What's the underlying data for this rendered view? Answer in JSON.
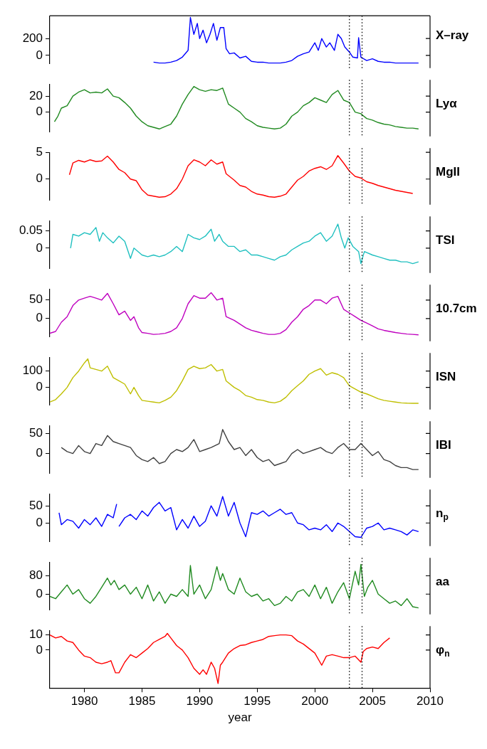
{
  "chart_data": [
    {
      "type": "line",
      "x": [
        1986,
        1986.5,
        1987,
        1987.5,
        1988,
        1988.5,
        1989,
        1989.2,
        1989.5,
        1989.8,
        1990,
        1990.3,
        1990.6,
        1990.9,
        1991.2,
        1991.5,
        1991.8,
        1992.1,
        1992.3,
        1992.6,
        1993,
        1993.5,
        1994,
        1994.5,
        1995,
        1995.5,
        1996,
        1996.5,
        1997,
        1997.5,
        1998,
        1998.5,
        1999,
        1999.5,
        2000,
        2000.3,
        2000.6,
        2001,
        2001.3,
        2001.7,
        2002,
        2002.3,
        2002.6,
        2003,
        2003.3,
        2003.7,
        2003.8,
        2004,
        2004.5,
        2005,
        2005.5,
        2006,
        2006.5,
        2007,
        2007.5,
        2008,
        2008.5,
        2009
      ],
      "series": [
        {
          "name": "X–ray",
          "color": "#0000ff",
          "values": [
            -80,
            -90,
            -90,
            -80,
            -60,
            -20,
            60,
            450,
            250,
            380,
            200,
            300,
            150,
            250,
            380,
            180,
            330,
            330,
            80,
            20,
            30,
            -30,
            -10,
            -70,
            -80,
            -80,
            -90,
            -90,
            -90,
            -80,
            -60,
            -10,
            20,
            40,
            150,
            60,
            200,
            100,
            150,
            60,
            250,
            200,
            100,
            40,
            -20,
            -30,
            210,
            -20,
            -60,
            -40,
            -70,
            -80,
            -80,
            -90,
            -90,
            -90,
            -90,
            -90
          ]
        }
      ],
      "xlim": [
        1977,
        2010
      ],
      "ylim": [
        -100,
        470
      ],
      "yticks": [
        0,
        200
      ],
      "tick_labels": "y",
      "ref_lines": [
        {
          "axis": "x",
          "value": 2003,
          "color": "#000000",
          "line_style": "dotted"
        },
        {
          "axis": "x",
          "value": 2004.1,
          "color": "#000000",
          "line_style": "dotted"
        }
      ]
    },
    {
      "type": "line",
      "x": [
        1977.4,
        1977.7,
        1978,
        1978.5,
        1979,
        1979.5,
        1980,
        1980.5,
        1981,
        1981.5,
        1982,
        1982.5,
        1983,
        1983.5,
        1984,
        1984.5,
        1985,
        1985.5,
        1986,
        1986.5,
        1987,
        1987.5,
        1988,
        1988.5,
        1989,
        1989.5,
        1990,
        1990.5,
        1991,
        1991.5,
        1992,
        1992.5,
        1993,
        1993.5,
        1994,
        1994.5,
        1995,
        1995.5,
        1996,
        1996.5,
        1997,
        1997.5,
        1998,
        1998.5,
        1999,
        1999.5,
        2000,
        2000.5,
        2001,
        2001.5,
        2002,
        2002.5,
        2003,
        2003.5,
        2004,
        2004.5,
        2005,
        2005.5,
        2006,
        2006.5,
        2007,
        2007.5,
        2008,
        2008.5,
        2009
      ],
      "series": [
        {
          "name": "Lyα",
          "color": "#208a20",
          "values": [
            -12,
            -5,
            5,
            8,
            20,
            25,
            28,
            24,
            25,
            24,
            29,
            20,
            18,
            12,
            5,
            -5,
            -12,
            -17,
            -19,
            -21,
            -18,
            -15,
            -5,
            10,
            22,
            32,
            28,
            26,
            28,
            27,
            30,
            10,
            5,
            0,
            -8,
            -12,
            -17,
            -19,
            -20,
            -21,
            -20,
            -15,
            -5,
            0,
            8,
            12,
            18,
            15,
            12,
            22,
            27,
            15,
            12,
            0,
            -2,
            -8,
            -10,
            -13,
            -15,
            -16,
            -18,
            -19,
            -20,
            -20,
            -21
          ]
        }
      ],
      "xlim": [
        1977,
        2010
      ],
      "ylim": [
        -25,
        35
      ],
      "yticks": [
        0,
        20
      ],
      "tick_labels": "y",
      "ref_lines": [
        {
          "axis": "x",
          "value": 2003,
          "color": "#000000",
          "line_style": "dotted"
        },
        {
          "axis": "x",
          "value": 2004.1,
          "color": "#000000",
          "line_style": "dotted"
        }
      ]
    },
    {
      "type": "line",
      "x": [
        1978.7,
        1979,
        1979.5,
        1980,
        1980.5,
        1981,
        1981.5,
        1982,
        1982.5,
        1983,
        1983.5,
        1984,
        1984.5,
        1985,
        1985.5,
        1986,
        1986.5,
        1987,
        1987.5,
        1988,
        1988.5,
        1989,
        1989.5,
        1990,
        1990.5,
        1991,
        1991.5,
        1992,
        1992.3,
        1993,
        1993.5,
        1994,
        1994.5,
        1995,
        1995.5,
        1996,
        1996.5,
        1997,
        1997.5,
        1998,
        1998.5,
        1999,
        1999.5,
        2000,
        2000.5,
        2001,
        2001.5,
        2002,
        2002.5,
        2003,
        2003.5,
        2004,
        2004.5,
        2005,
        2005.5,
        2006,
        2006.5,
        2007,
        2007.5,
        2008,
        2008.5
      ],
      "series": [
        {
          "name": "MgII",
          "color": "#ff0000",
          "values": [
            0.8,
            3,
            3.5,
            3.2,
            3.6,
            3.3,
            3.4,
            4.3,
            3.2,
            1.8,
            1.2,
            0,
            -0.3,
            -2,
            -3,
            -3.2,
            -3.4,
            -3.3,
            -2.8,
            -1.8,
            0,
            2.5,
            3.6,
            3.2,
            2.5,
            3.6,
            2.8,
            3.2,
            1,
            -0.2,
            -1.2,
            -1.5,
            -2.3,
            -2.8,
            -3,
            -3.3,
            -3.4,
            -3.2,
            -2.8,
            -1.5,
            -0.2,
            0.5,
            1.5,
            2,
            2.3,
            1.8,
            2.5,
            4.4,
            3,
            1.5,
            0.5,
            0.2,
            -0.5,
            -0.8,
            -1.2,
            -1.5,
            -1.8,
            -2.1,
            -2.3,
            -2.5,
            -2.7
          ]
        }
      ],
      "xlim": [
        1977,
        2010
      ],
      "ylim": [
        -4,
        5
      ],
      "yticks": [
        0,
        5
      ],
      "tick_labels": "y",
      "ref_lines": [
        {
          "axis": "x",
          "value": 2003,
          "color": "#000000",
          "line_style": "dotted"
        },
        {
          "axis": "x",
          "value": 2004.1,
          "color": "#000000",
          "line_style": "dotted"
        }
      ]
    },
    {
      "type": "line",
      "x": [
        1978.8,
        1979,
        1979.5,
        1980,
        1980.5,
        1981,
        1981.3,
        1981.6,
        1982,
        1982.5,
        1983,
        1983.5,
        1984,
        1984.3,
        1985,
        1985.5,
        1986,
        1986.5,
        1987,
        1987.5,
        1988,
        1988.5,
        1989,
        1989.5,
        1990,
        1990.5,
        1991,
        1991.3,
        1991.7,
        1992,
        1992.5,
        1993,
        1993.5,
        1994,
        1994.5,
        1995,
        1995.5,
        1996,
        1996.5,
        1997,
        1997.5,
        1998,
        1998.5,
        1999,
        1999.5,
        2000,
        2000.5,
        2001,
        2001.5,
        2002,
        2002.3,
        2002.6,
        2002.9,
        2003.3,
        2003.8,
        2004,
        2004.3,
        2005,
        2005.5,
        2006,
        2006.5,
        2007,
        2007.5,
        2008,
        2008.5,
        2009
      ],
      "series": [
        {
          "name": "TSI",
          "color": "#20c0c0",
          "values": [
            0,
            0.04,
            0.035,
            0.045,
            0.04,
            0.06,
            0.02,
            0.045,
            0.03,
            0.015,
            0.035,
            0.02,
            -0.03,
            0,
            -0.02,
            -0.025,
            -0.02,
            -0.025,
            -0.02,
            -0.01,
            0.005,
            -0.01,
            0.04,
            0.03,
            0.025,
            0.035,
            0.055,
            0.02,
            0.04,
            0.02,
            0.005,
            0.005,
            -0.01,
            -0.005,
            -0.02,
            -0.02,
            -0.025,
            -0.03,
            -0.035,
            -0.025,
            -0.02,
            -0.005,
            0.005,
            0.015,
            0.02,
            0.035,
            0.045,
            0.02,
            0.035,
            0.07,
            0.03,
            0,
            0.03,
            0.005,
            -0.01,
            -0.045,
            -0.01,
            -0.02,
            -0.025,
            -0.03,
            -0.035,
            -0.035,
            -0.04,
            -0.04,
            -0.045,
            -0.04
          ]
        }
      ],
      "xlim": [
        1977,
        2010
      ],
      "ylim": [
        -0.06,
        0.08
      ],
      "yticks": [
        0,
        0.05
      ],
      "tick_labels": "y",
      "ref_lines": [
        {
          "axis": "x",
          "value": 2003,
          "color": "#000000",
          "line_style": "dotted"
        },
        {
          "axis": "x",
          "value": 2004.1,
          "color": "#000000",
          "line_style": "dotted"
        }
      ]
    },
    {
      "type": "line",
      "x": [
        1977,
        1977.5,
        1978,
        1978.5,
        1979,
        1979.5,
        1980,
        1980.5,
        1981,
        1981.5,
        1982,
        1982.5,
        1983,
        1983.5,
        1984,
        1984.3,
        1984.7,
        1985,
        1985.5,
        1986,
        1986.5,
        1987,
        1987.5,
        1988,
        1988.5,
        1989,
        1989.5,
        1990,
        1990.5,
        1991,
        1991.5,
        1992,
        1992.3,
        1993,
        1993.5,
        1994,
        1994.5,
        1995,
        1995.5,
        1996,
        1996.5,
        1997,
        1997.5,
        1998,
        1998.5,
        1999,
        1999.5,
        2000,
        2000.5,
        2001,
        2001.5,
        2002,
        2002.5,
        2003,
        2003.5,
        2004,
        2004.5,
        2005,
        2005.5,
        2006,
        2006.5,
        2007,
        2007.5,
        2008,
        2008.5,
        2009
      ],
      "series": [
        {
          "name": "10.7cm",
          "color": "#bf00bf",
          "values": [
            -40,
            -35,
            -10,
            5,
            35,
            50,
            55,
            60,
            55,
            50,
            68,
            40,
            10,
            20,
            -5,
            5,
            -25,
            -38,
            -40,
            -43,
            -42,
            -40,
            -35,
            -25,
            0,
            40,
            62,
            55,
            55,
            70,
            50,
            55,
            5,
            -5,
            -15,
            -25,
            -32,
            -36,
            -40,
            -43,
            -43,
            -40,
            -30,
            -10,
            5,
            25,
            35,
            50,
            50,
            40,
            55,
            60,
            25,
            15,
            5,
            -5,
            -12,
            -20,
            -28,
            -32,
            -35,
            -38,
            -40,
            -42,
            -43,
            -44
          ]
        }
      ],
      "xlim": [
        1977,
        2010
      ],
      "ylim": [
        -50,
        80
      ],
      "yticks": [
        0,
        50
      ],
      "tick_labels": "y",
      "ref_lines": [
        {
          "axis": "x",
          "value": 2003,
          "color": "#000000",
          "line_style": "dotted"
        },
        {
          "axis": "x",
          "value": 2004.1,
          "color": "#000000",
          "line_style": "dotted"
        }
      ]
    },
    {
      "type": "line",
      "x": [
        1977,
        1977.5,
        1978,
        1978.5,
        1979,
        1979.5,
        1980,
        1980.3,
        1980.5,
        1981,
        1981.5,
        1982,
        1982.5,
        1983,
        1983.5,
        1984,
        1984.3,
        1984.7,
        1985,
        1985.5,
        1986,
        1986.5,
        1987,
        1987.5,
        1988,
        1988.5,
        1989,
        1989.5,
        1990,
        1990.5,
        1991,
        1991.5,
        1992,
        1992.3,
        1993,
        1993.5,
        1994,
        1994.5,
        1995,
        1995.5,
        1996,
        1996.5,
        1997,
        1997.5,
        1998,
        1998.5,
        1999,
        1999.5,
        2000,
        2000.5,
        2001,
        2001.5,
        2002,
        2002.5,
        2003,
        2003.5,
        2004,
        2004.5,
        2005,
        2005.5,
        2006,
        2006.5,
        2007,
        2007.5,
        2008,
        2008.5,
        2009
      ],
      "series": [
        {
          "name": "ISN",
          "color": "#bfbf00",
          "values": [
            -90,
            -75,
            -40,
            0,
            60,
            100,
            150,
            175,
            120,
            110,
            100,
            130,
            60,
            40,
            20,
            -40,
            0,
            -50,
            -80,
            -85,
            -90,
            -95,
            -80,
            -60,
            -20,
            40,
            110,
            130,
            115,
            120,
            140,
            100,
            110,
            40,
            0,
            -20,
            -50,
            -60,
            -75,
            -80,
            -90,
            -95,
            -85,
            -60,
            -20,
            10,
            40,
            80,
            100,
            115,
            75,
            90,
            80,
            60,
            10,
            -10,
            -30,
            -40,
            -55,
            -70,
            -80,
            -85,
            -90,
            -95,
            -97,
            -98,
            -98
          ]
        }
      ],
      "xlim": [
        1977,
        2010
      ],
      "ylim": [
        -110,
        185
      ],
      "yticks": [
        0,
        100
      ],
      "tick_labels": "y",
      "ref_lines": [
        {
          "axis": "x",
          "value": 2003,
          "color": "#000000",
          "line_style": "dotted"
        },
        {
          "axis": "x",
          "value": 2004.1,
          "color": "#000000",
          "line_style": "dotted"
        }
      ]
    },
    {
      "type": "line",
      "x": [
        1978,
        1978.5,
        1979,
        1979.5,
        1980,
        1980.5,
        1981,
        1981.5,
        1982,
        1982.5,
        1983,
        1983.5,
        1984,
        1984.5,
        1985,
        1985.5,
        1986,
        1986.5,
        1987,
        1987.5,
        1988,
        1988.5,
        1989,
        1989.5,
        1990,
        1990.5,
        1991,
        1991.7,
        1992,
        1992.5,
        1993,
        1993.5,
        1994,
        1994.5,
        1995,
        1995.5,
        1996,
        1996.5,
        1997,
        1997.5,
        1998,
        1998.5,
        1999,
        1999.5,
        2000,
        2000.5,
        2001,
        2001.5,
        2002,
        2002.5,
        2003,
        2003.5,
        2004,
        2004.5,
        2005,
        2005.5,
        2006,
        2006.5,
        2007,
        2007.5,
        2008,
        2008.5,
        2009
      ],
      "series": [
        {
          "name": "IBI",
          "color": "#404040",
          "values": [
            15,
            5,
            0,
            20,
            5,
            0,
            25,
            20,
            45,
            30,
            25,
            20,
            15,
            -5,
            -15,
            -20,
            -10,
            -25,
            -20,
            0,
            10,
            5,
            15,
            35,
            5,
            10,
            15,
            25,
            60,
            30,
            10,
            15,
            -5,
            10,
            -10,
            -20,
            -15,
            -30,
            -25,
            -20,
            0,
            10,
            0,
            5,
            10,
            15,
            5,
            0,
            15,
            25,
            10,
            10,
            25,
            10,
            -5,
            5,
            -15,
            -20,
            -30,
            -35,
            -35,
            -40,
            -40
          ]
        }
      ],
      "xlim": [
        1977,
        2010
      ],
      "ylim": [
        -50,
        70
      ],
      "yticks": [
        0,
        50
      ],
      "tick_labels": "y",
      "ref_lines": [
        {
          "axis": "x",
          "value": 2003,
          "color": "#000000",
          "line_style": "dotted"
        },
        {
          "axis": "x",
          "value": 2004.1,
          "color": "#000000",
          "line_style": "dotted"
        }
      ]
    },
    {
      "type": "line",
      "x": [
        1977.8,
        1978,
        1978.5,
        1979,
        1979.5,
        1980,
        1980.5,
        1981,
        1981.5,
        1982,
        1982.5,
        1982.8,
        1982.9,
        1983,
        1983.5,
        1984,
        1984.5,
        1985,
        1985.5,
        1986,
        1986.5,
        1987,
        1987.5,
        1988,
        1988.5,
        1989,
        1989.5,
        1990,
        1990.5,
        1991,
        1991.5,
        1992,
        1992.5,
        1993,
        1993.5,
        1994,
        1994.5,
        1995,
        1995.5,
        1996,
        1996.5,
        1997,
        1997.5,
        1998,
        1998.5,
        1999,
        1999.5,
        2000,
        2000.5,
        2001,
        2001.5,
        2002,
        2002.5,
        2003,
        2003.5,
        2004,
        2004.5,
        2005,
        2005.5,
        2006,
        2006.5,
        2007,
        2007.5,
        2008,
        2008.5,
        2009
      ],
      "series": [
        {
          "name": "n$_{p}$",
          "color": "#0000ff",
          "values": [
            30,
            -5,
            10,
            5,
            -15,
            10,
            -5,
            15,
            -10,
            25,
            15,
            55,
            null,
            -10,
            15,
            25,
            10,
            35,
            20,
            45,
            60,
            35,
            45,
            -20,
            10,
            -15,
            20,
            -10,
            5,
            50,
            20,
            77,
            20,
            60,
            0,
            -40,
            30,
            25,
            35,
            20,
            30,
            40,
            25,
            30,
            0,
            -5,
            -20,
            -15,
            -20,
            -5,
            -25,
            0,
            -10,
            -25,
            -40,
            -42,
            -15,
            -10,
            0,
            -20,
            -15,
            -20,
            -25,
            -35,
            -20,
            -25
          ]
        }
      ],
      "xlim": [
        1977,
        2010
      ],
      "ylim": [
        -55,
        85
      ],
      "yticks": [
        0,
        50
      ],
      "tick_labels": "y",
      "ref_lines": [
        {
          "axis": "x",
          "value": 2003,
          "color": "#000000",
          "line_style": "dotted"
        },
        {
          "axis": "x",
          "value": 2004.1,
          "color": "#000000",
          "line_style": "dotted"
        }
      ]
    },
    {
      "type": "line",
      "x": [
        1977,
        1977.5,
        1978,
        1978.5,
        1979,
        1979.5,
        1980,
        1980.5,
        1981,
        1981.5,
        1982,
        1982.3,
        1982.6,
        1983,
        1983.5,
        1984,
        1984.5,
        1985,
        1985.5,
        1986,
        1986.5,
        1987,
        1987.5,
        1988,
        1988.5,
        1989,
        1989.2,
        1989.5,
        1990,
        1990.5,
        1991,
        1991.5,
        1991.8,
        1992,
        1992.5,
        1993,
        1993.5,
        1994,
        1994.5,
        1995,
        1995.5,
        1996,
        1996.5,
        1997,
        1997.5,
        1998,
        1998.5,
        1999,
        1999.5,
        2000,
        2000.5,
        2001,
        2001.5,
        2002,
        2002.5,
        2003,
        2003.5,
        2003.8,
        2004,
        2004.3,
        2004.6,
        2005,
        2005.5,
        2006,
        2006.5,
        2007,
        2007.5,
        2008,
        2008.5,
        2009
      ],
      "series": [
        {
          "name": "aa",
          "color": "#208a20",
          "values": [
            -10,
            -20,
            10,
            40,
            0,
            20,
            -20,
            -40,
            -10,
            30,
            70,
            40,
            60,
            20,
            40,
            0,
            30,
            -20,
            40,
            -30,
            10,
            -40,
            0,
            -10,
            20,
            -10,
            125,
            0,
            40,
            -20,
            20,
            120,
            60,
            90,
            20,
            0,
            70,
            10,
            -10,
            0,
            -30,
            -20,
            -50,
            -40,
            -10,
            -30,
            10,
            20,
            -10,
            40,
            -20,
            30,
            -40,
            10,
            50,
            -20,
            100,
            40,
            130,
            -10,
            30,
            60,
            0,
            -20,
            -40,
            -30,
            -50,
            -20,
            -55,
            -60
          ]
        }
      ],
      "xlim": [
        1977,
        2010
      ],
      "ylim": [
        -70,
        140
      ],
      "yticks": [
        0,
        80
      ],
      "tick_labels": "y",
      "ref_lines": [
        {
          "axis": "x",
          "value": 2003,
          "color": "#000000",
          "line_style": "dotted"
        },
        {
          "axis": "x",
          "value": 2004.1,
          "color": "#000000",
          "line_style": "dotted"
        }
      ]
    },
    {
      "type": "line",
      "x": [
        1977,
        1977.5,
        1978,
        1978.5,
        1979,
        1979.5,
        1980,
        1980.5,
        1981,
        1981.5,
        1982,
        1982.3,
        1982.7,
        1983,
        1983.5,
        1984,
        1984.5,
        1985,
        1985.5,
        1986,
        1986.5,
        1987,
        1987.2,
        1987.5,
        1988,
        1988.5,
        1989,
        1989.5,
        1990,
        1990.3,
        1990.6,
        1991,
        1991.3,
        1991.6,
        1991.8,
        1992,
        1992.5,
        1993,
        1993.5,
        1994,
        1994.5,
        1995,
        1995.5,
        1996,
        1996.5,
        1997,
        1997.5,
        1998,
        1998.5,
        1999,
        2000,
        2000.6,
        2001,
        2001.5,
        2002,
        2002.5,
        2003,
        2003.5,
        2004,
        2004.2,
        2004.5,
        2005,
        2005.5,
        2006,
        2006.5
      ],
      "series": [
        {
          "name": "φ$_{n}$",
          "color": "#ff0000",
          "values": [
            10,
            8,
            9,
            6,
            5,
            0,
            -4,
            -5,
            -8,
            -9,
            -8,
            -7,
            -15,
            -15,
            -8,
            -3,
            -5,
            -2,
            1,
            5,
            7,
            9,
            11,
            8,
            3,
            0,
            -5,
            -12,
            -16,
            -13,
            -16,
            -8,
            -12,
            -22,
            -10,
            -8,
            -2,
            1,
            3,
            3.5,
            5,
            6,
            7,
            9,
            9.5,
            10,
            10,
            9.5,
            6,
            4,
            -2,
            -10,
            -4,
            -3,
            -4,
            -5,
            -5,
            -4,
            -8,
            -1,
            1,
            2,
            1,
            5,
            8
          ]
        }
      ],
      "xlim": [
        1977,
        2010
      ],
      "ylim": [
        -25,
        13
      ],
      "yticks": [
        0,
        10
      ],
      "xticks": [
        1980,
        1985,
        1990,
        1995,
        2000,
        2005,
        2010
      ],
      "xlabel": "year",
      "ref_lines": [
        {
          "axis": "x",
          "value": 2003,
          "color": "#000000",
          "line_style": "dotted"
        },
        {
          "axis": "x",
          "value": 2004.1,
          "color": "#000000",
          "line_style": "dotted"
        }
      ]
    }
  ]
}
